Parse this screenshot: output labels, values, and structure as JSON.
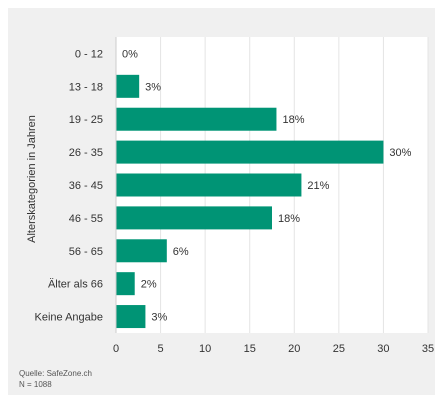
{
  "colors": {
    "bar": "#009475",
    "plot_background": "#ffffff",
    "panel_background": "#f0f0f0",
    "gridline": "#e4e4e4",
    "text": "#333333"
  },
  "source": {
    "line1": "Quelle: SafeZone.ch",
    "line2": "N = 1088"
  },
  "chart_data": {
    "type": "bar",
    "orientation": "horizontal",
    "title": "",
    "ylabel": "Alterskategorien in Jahren",
    "xlabel": "",
    "categories": [
      "0 - 12",
      "13 - 18",
      "19 - 25",
      "26 - 35",
      "36 - 45",
      "46 - 55",
      "56 - 65",
      "Älter als 66",
      "Keine Angabe"
    ],
    "values": [
      0,
      2.6,
      18,
      30,
      20.8,
      17.5,
      5.7,
      2.1,
      3.3
    ],
    "value_labels": [
      "0%",
      "3%",
      "18%",
      "30%",
      "21%",
      "18%",
      "6%",
      "2%",
      "3%"
    ],
    "xlim": [
      0,
      35
    ],
    "xticks": [
      0,
      5,
      10,
      15,
      20,
      25,
      30,
      35
    ],
    "grid": true,
    "legend": "none"
  }
}
